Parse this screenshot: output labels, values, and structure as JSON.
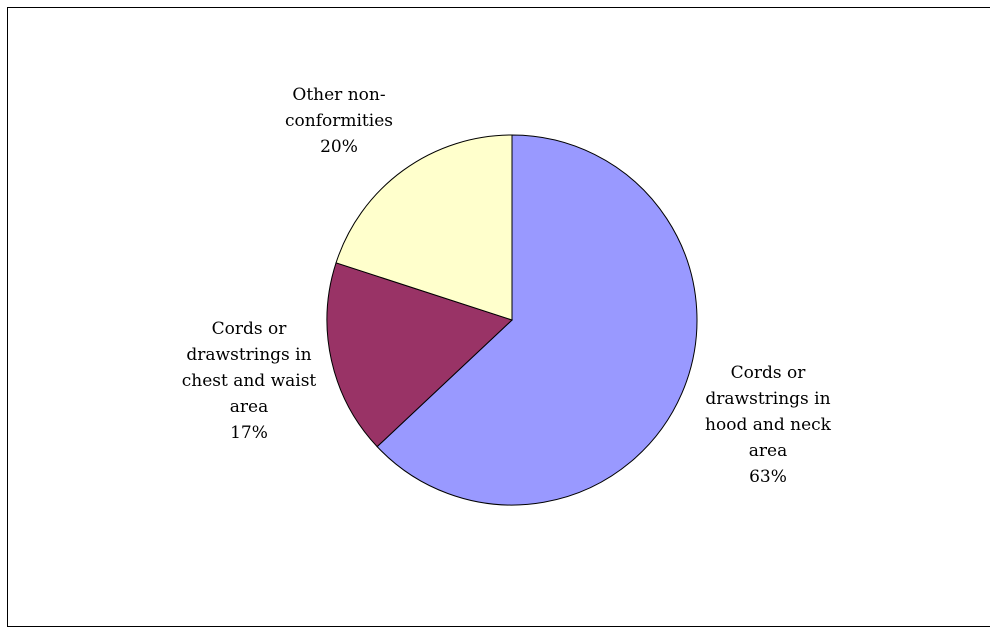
{
  "chart_data": {
    "type": "pie",
    "title": "",
    "slices": [
      {
        "label_lines": [
          "Cords or",
          "drawstrings in",
          "hood and neck",
          "area"
        ],
        "percent_label": "63%",
        "value": 63,
        "color": "#9999ff"
      },
      {
        "label_lines": [
          "Cords or",
          "drawstrings in",
          "chest and waist",
          "area"
        ],
        "percent_label": "17%",
        "value": 17,
        "color": "#993366"
      },
      {
        "label_lines": [
          "Other non-",
          "conformities"
        ],
        "percent_label": "20%",
        "value": 20,
        "color": "#ffffcc"
      }
    ],
    "start_angle_deg": 0,
    "direction": "clockwise",
    "legend": "none",
    "slice_border_color": "#000000"
  }
}
